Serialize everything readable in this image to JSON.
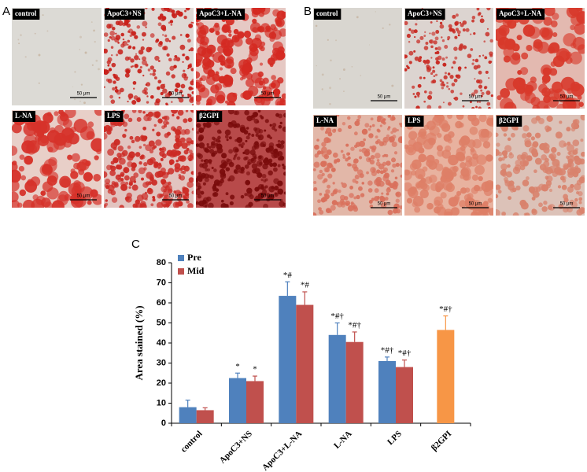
{
  "panels": [
    {
      "label": "A",
      "tiles": [
        "control",
        "ApoC3+NS",
        "ApoC3+L-NA",
        "L-NA",
        "LPS",
        "β2GPI"
      ],
      "scale_bar": "50 μm"
    },
    {
      "label": "B",
      "tiles": [
        "control",
        "ApoC3+NS",
        "ApoC3+L-NA",
        "L-NA",
        "LPS",
        "β2GPI"
      ],
      "scale_bar": "50 μm"
    }
  ],
  "chart_data": {
    "type": "bar",
    "panel_label": "C",
    "ylabel": "Area stained (%)",
    "categories": [
      "control",
      "ApoC3+NS",
      "ApoC3+L-NA",
      "L-NA",
      "LPS",
      "β2GPI"
    ],
    "series": [
      {
        "name": "Pre",
        "color": "#4f81bd",
        "colors": [
          "#4f81bd",
          "#4f81bd",
          "#4f81bd",
          "#4f81bd",
          "#4f81bd",
          "#f79646"
        ],
        "values": [
          8,
          22.5,
          63.5,
          44,
          31,
          46.5
        ],
        "errors": [
          3.5,
          2.5,
          7,
          6,
          2,
          7
        ],
        "annotations": [
          null,
          "*",
          "*#",
          "*#†",
          "*#†",
          "*#†"
        ]
      },
      {
        "name": "Mid",
        "color": "#c0504d",
        "values": [
          6.5,
          21,
          59,
          40.5,
          28,
          null
        ],
        "errors": [
          1.2,
          2.5,
          6.5,
          5,
          3.5,
          null
        ],
        "annotations": [
          null,
          "*",
          "*#",
          "*#†",
          "*#†",
          null
        ]
      }
    ],
    "ylim": [
      0,
      80
    ],
    "yticks": [
      0,
      10,
      20,
      30,
      40,
      50,
      60,
      70,
      80
    ],
    "legend": "top-left"
  }
}
